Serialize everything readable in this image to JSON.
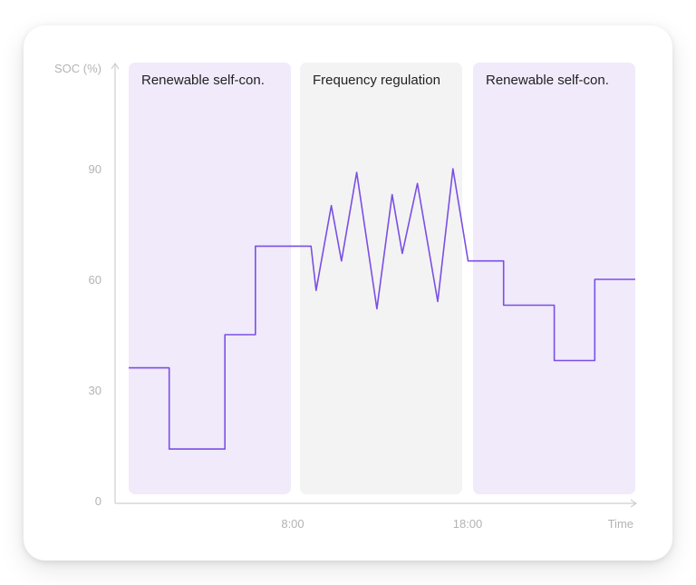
{
  "colors": {
    "line": "#7b4fe4",
    "renewable_band": "#f0eafb",
    "frequency_band": "#f3f3f3",
    "axis": "#cfcfcf",
    "axis_text": "#b3b3b3",
    "label_text": "#222222"
  },
  "chart_data": {
    "type": "line",
    "ylabel": "SOC (%)",
    "xlabel": "Time",
    "ylim": [
      0,
      110
    ],
    "y_ticks": [
      "0",
      "30",
      "60",
      "90"
    ],
    "x_ticks": [
      "8:00",
      "18:00"
    ],
    "grid": false,
    "regions": [
      {
        "name": "Renewable self-con."
      },
      {
        "name": "Frequency regulation"
      },
      {
        "name": "Renewable self-con."
      }
    ],
    "series": [
      {
        "name": "",
        "points": [
          [
            0.0,
            36
          ],
          [
            0.08,
            36
          ],
          [
            0.08,
            14
          ],
          [
            0.19,
            14
          ],
          [
            0.19,
            45
          ],
          [
            0.25,
            45
          ],
          [
            0.25,
            69
          ],
          [
            0.36,
            69
          ],
          [
            0.37,
            57
          ],
          [
            0.4,
            80
          ],
          [
            0.42,
            65
          ],
          [
            0.45,
            89
          ],
          [
            0.49,
            52
          ],
          [
            0.52,
            83
          ],
          [
            0.54,
            67
          ],
          [
            0.57,
            86
          ],
          [
            0.61,
            54
          ],
          [
            0.64,
            90
          ],
          [
            0.67,
            65
          ],
          [
            0.74,
            65
          ],
          [
            0.74,
            53
          ],
          [
            0.84,
            53
          ],
          [
            0.84,
            38
          ],
          [
            0.92,
            38
          ],
          [
            0.92,
            60
          ],
          [
            1.0,
            60
          ]
        ]
      }
    ]
  }
}
